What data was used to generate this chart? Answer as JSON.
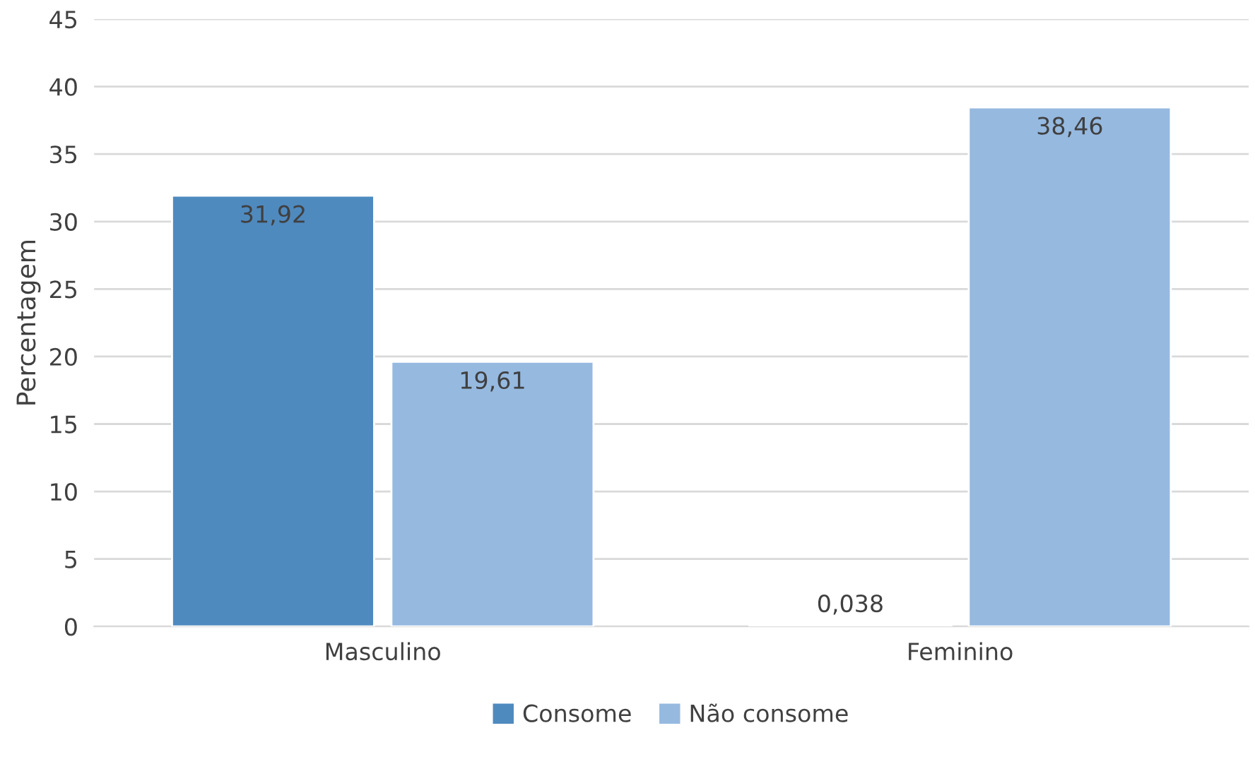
{
  "chart_data": {
    "type": "bar",
    "ylabel": "Percentagem",
    "categories": [
      "Masculino",
      "Feminino"
    ],
    "series": [
      {
        "name": "Consome",
        "color": "#4f8abf",
        "values": [
          31.92,
          0.038
        ],
        "value_labels": [
          "31,92",
          "0,038"
        ]
      },
      {
        "name": "Não consome",
        "color": "#96b9e0",
        "values": [
          19.61,
          38.46
        ],
        "value_labels": [
          "19,61",
          "38,46"
        ]
      }
    ],
    "ylim": [
      0,
      45
    ],
    "yticks": [
      0,
      5,
      10,
      15,
      20,
      25,
      30,
      35,
      40,
      45
    ],
    "grid": "y",
    "legend": "bottom"
  }
}
